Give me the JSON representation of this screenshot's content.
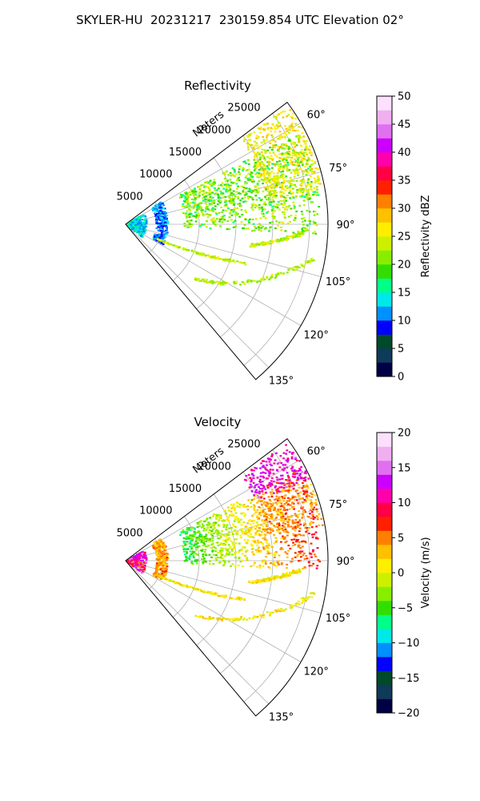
{
  "figure": {
    "title": "SKYLER-HU  20231217  230159.854 UTC Elevation 02°"
  },
  "colors": {
    "background": "#ffffff",
    "axes": "#000000",
    "grid": "#b0b0b0"
  },
  "chart_data": [
    {
      "type": "heatmap",
      "panel": "reflectivity",
      "title": "Reflectivity",
      "range_label": "Meters",
      "range_ticks": [
        5000,
        10000,
        15000,
        20000,
        25000
      ],
      "range_lim": [
        0,
        27500
      ],
      "azimuth_ticks": [
        "60°",
        "75°",
        "90°",
        "105°",
        "120°",
        "135°"
      ],
      "azimuth_lim": [
        53,
        140
      ],
      "grid": true,
      "colorbar": {
        "label": "Reflectivity dBZ",
        "ticks": [
          0,
          5,
          10,
          15,
          20,
          25,
          30,
          35,
          40,
          45,
          50
        ],
        "range": [
          0,
          50
        ],
        "colormap": [
          "#000044",
          "#103a5a",
          "#004a2a",
          "#0000ff",
          "#0090ff",
          "#00e8e8",
          "#00ff88",
          "#33dd00",
          "#88ee00",
          "#ccf000",
          "#ffee00",
          "#ffc000",
          "#ff8000",
          "#ff2000",
          "#ff0044",
          "#ff00aa",
          "#cc00ff",
          "#e070f0",
          "#f0b0f0",
          "#fde0fd"
        ]
      },
      "echo_features": [
        {
          "name": "near-range clutter",
          "value": 13
        },
        {
          "name": "ring arc",
          "value": 11
        },
        {
          "name": "broad field",
          "value": 21
        },
        {
          "name": "far-range band",
          "value": 26
        },
        {
          "name": "linear streaks",
          "value": 23
        }
      ]
    },
    {
      "type": "heatmap",
      "panel": "velocity",
      "title": "Velocity",
      "range_label": "Meters",
      "range_ticks": [
        5000,
        10000,
        15000,
        20000,
        25000
      ],
      "range_lim": [
        0,
        27500
      ],
      "azimuth_ticks": [
        "60°",
        "75°",
        "90°",
        "105°",
        "120°",
        "135°"
      ],
      "azimuth_lim": [
        53,
        140
      ],
      "grid": true,
      "colorbar": {
        "label": "Velocity (m/s)",
        "ticks": [
          -20,
          -15,
          -10,
          -5,
          0,
          5,
          10,
          15,
          20
        ],
        "range": [
          -20,
          20
        ],
        "colormap": [
          "#000044",
          "#103a5a",
          "#004a2a",
          "#0000ff",
          "#0090ff",
          "#00e8e8",
          "#00ff88",
          "#33dd00",
          "#88ee00",
          "#ccf000",
          "#ffee00",
          "#ffc000",
          "#ff8000",
          "#ff2000",
          "#ff0044",
          "#ff00aa",
          "#cc00ff",
          "#e070f0",
          "#f0b0f0",
          "#fde0fd"
        ]
      },
      "echo_features": [
        {
          "name": "near-range clutter",
          "value": 12
        },
        {
          "name": "ring arc",
          "value": 4
        },
        {
          "name": "broad field",
          "value": -6
        },
        {
          "name": "far-range band",
          "value": 8
        },
        {
          "name": "linear streaks",
          "value": 1
        }
      ]
    }
  ]
}
